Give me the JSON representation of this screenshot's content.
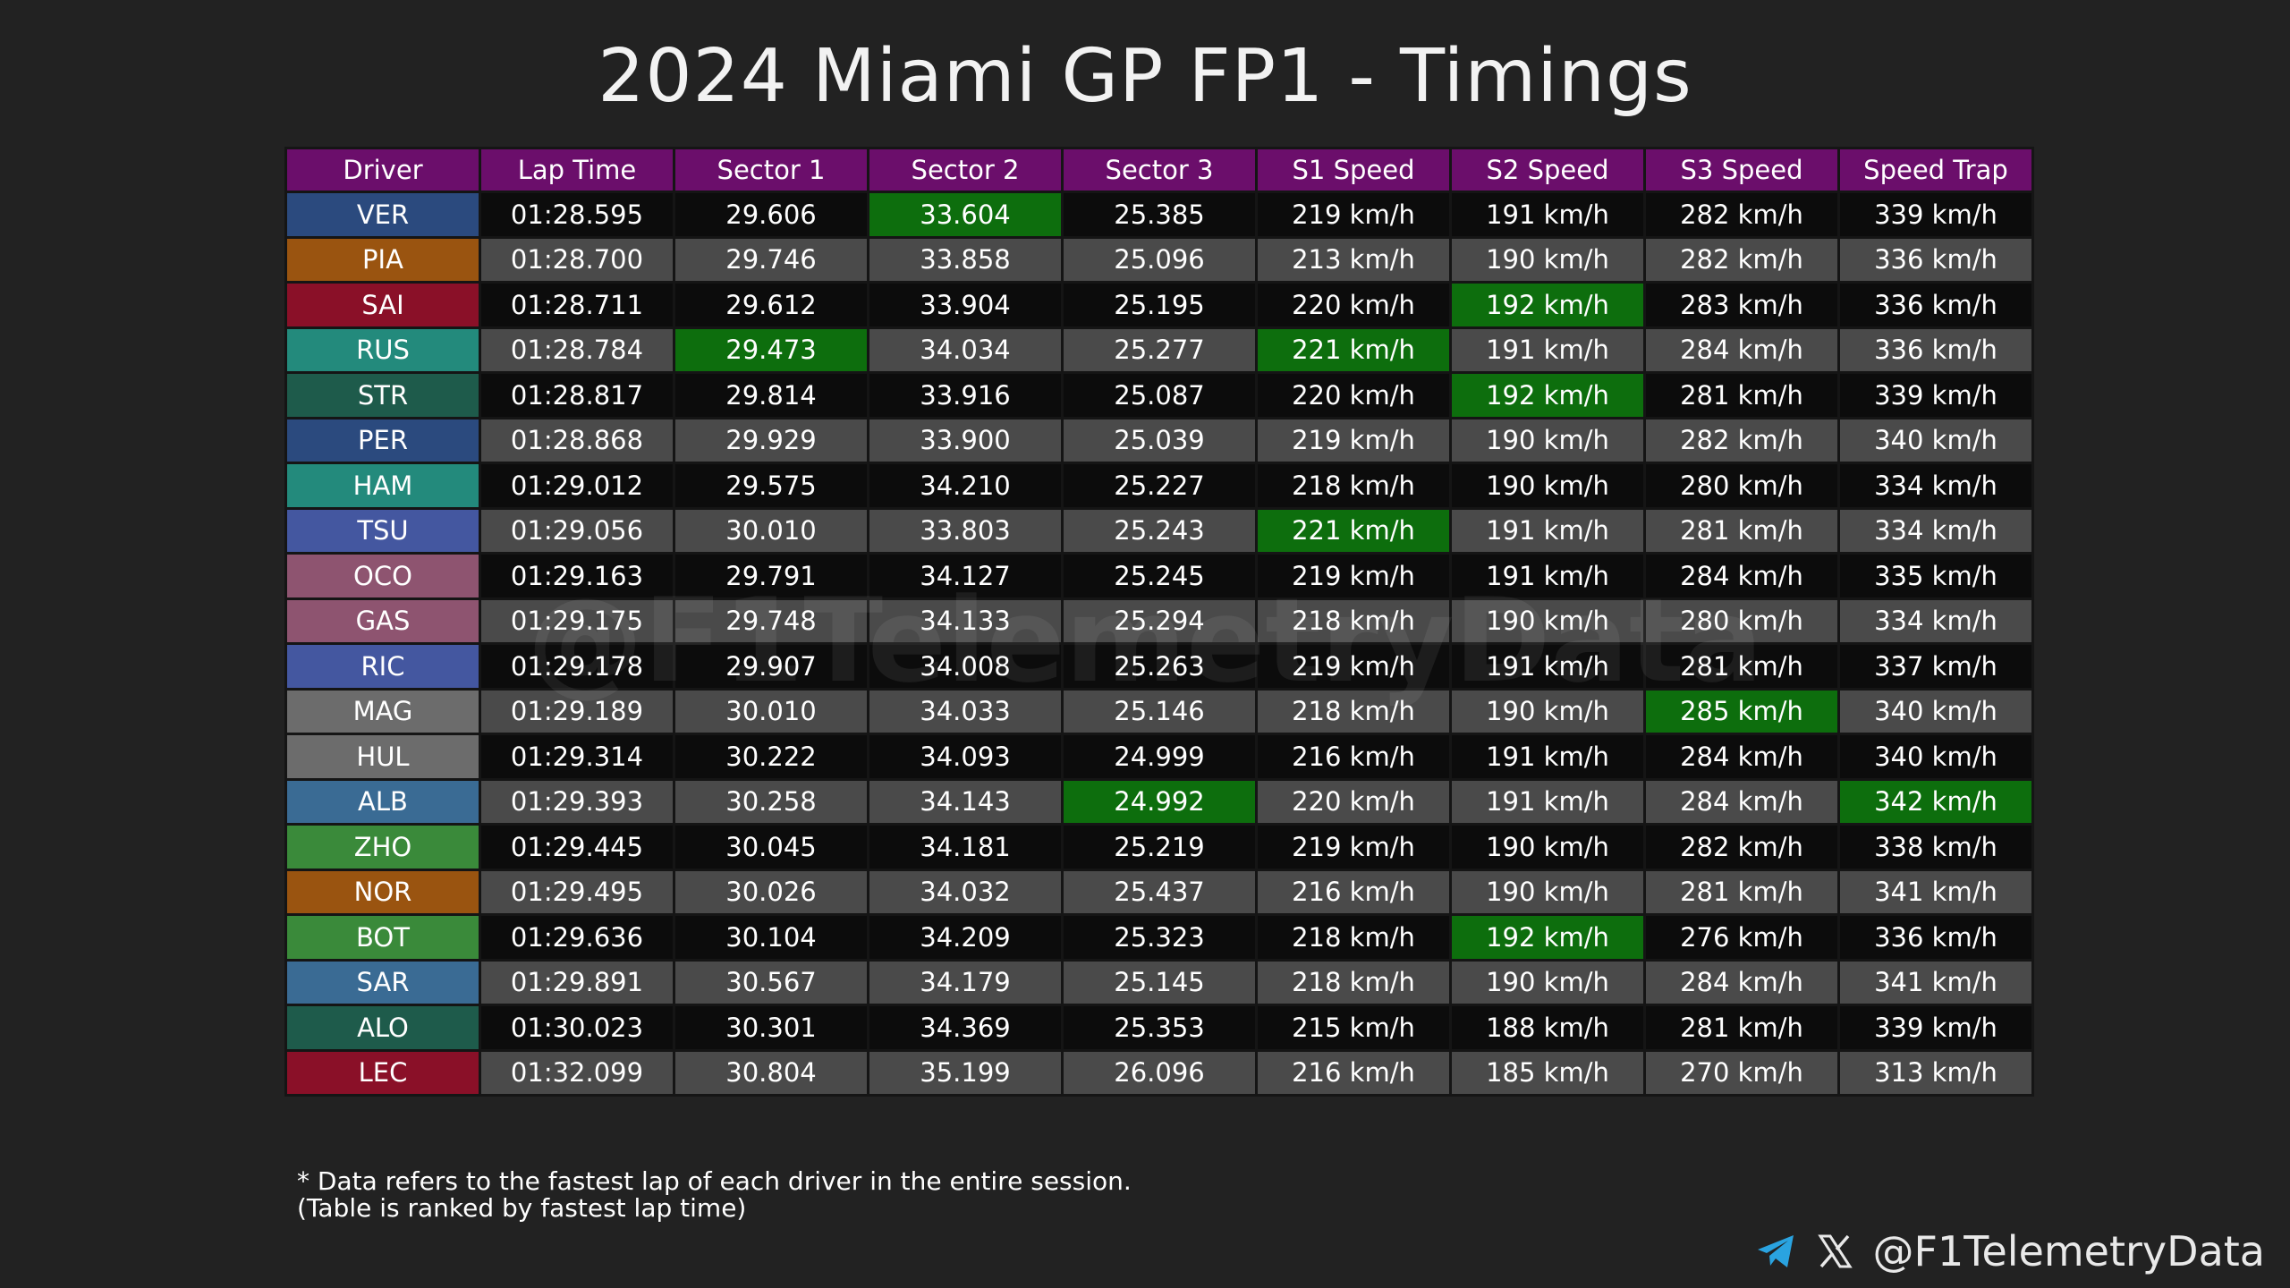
{
  "title": "2024 Miami GP FP1 - Timings",
  "watermark": "@F1TelemetryData",
  "headers": [
    "Driver",
    "Lap Time",
    "Sector 1",
    "Sector 2",
    "Sector 3",
    "S1 Speed",
    "S2 Speed",
    "S3 Speed",
    "Speed Trap"
  ],
  "rows": [
    {
      "driver": "VER",
      "team_color": "#2b4a7e",
      "cells": [
        "01:28.595",
        "29.606",
        "33.604",
        "25.385",
        "219 km/h",
        "191 km/h",
        "282 km/h",
        "339 km/h"
      ],
      "best": [
        2
      ]
    },
    {
      "driver": "PIA",
      "team_color": "#9a5410",
      "cells": [
        "01:28.700",
        "29.746",
        "33.858",
        "25.096",
        "213 km/h",
        "190 km/h",
        "282 km/h",
        "336 km/h"
      ],
      "best": []
    },
    {
      "driver": "SAI",
      "team_color": "#8a1028",
      "cells": [
        "01:28.711",
        "29.612",
        "33.904",
        "25.195",
        "220 km/h",
        "192 km/h",
        "283 km/h",
        "336 km/h"
      ],
      "best": [
        5
      ]
    },
    {
      "driver": "RUS",
      "team_color": "#238a7c",
      "cells": [
        "01:28.784",
        "29.473",
        "34.034",
        "25.277",
        "221 km/h",
        "191 km/h",
        "284 km/h",
        "336 km/h"
      ],
      "best": [
        1,
        4
      ]
    },
    {
      "driver": "STR",
      "team_color": "#1e5b4b",
      "cells": [
        "01:28.817",
        "29.814",
        "33.916",
        "25.087",
        "220 km/h",
        "192 km/h",
        "281 km/h",
        "339 km/h"
      ],
      "best": [
        5
      ]
    },
    {
      "driver": "PER",
      "team_color": "#2b4a7e",
      "cells": [
        "01:28.868",
        "29.929",
        "33.900",
        "25.039",
        "219 km/h",
        "190 km/h",
        "282 km/h",
        "340 km/h"
      ],
      "best": []
    },
    {
      "driver": "HAM",
      "team_color": "#238a7c",
      "cells": [
        "01:29.012",
        "29.575",
        "34.210",
        "25.227",
        "218 km/h",
        "190 km/h",
        "280 km/h",
        "334 km/h"
      ],
      "best": []
    },
    {
      "driver": "TSU",
      "team_color": "#4457a0",
      "cells": [
        "01:29.056",
        "30.010",
        "33.803",
        "25.243",
        "221 km/h",
        "191 km/h",
        "281 km/h",
        "334 km/h"
      ],
      "best": [
        4
      ]
    },
    {
      "driver": "OCO",
      "team_color": "#8e5470",
      "cells": [
        "01:29.163",
        "29.791",
        "34.127",
        "25.245",
        "219 km/h",
        "191 km/h",
        "284 km/h",
        "335 km/h"
      ],
      "best": []
    },
    {
      "driver": "GAS",
      "team_color": "#8e5470",
      "cells": [
        "01:29.175",
        "29.748",
        "34.133",
        "25.294",
        "218 km/h",
        "190 km/h",
        "280 km/h",
        "334 km/h"
      ],
      "best": []
    },
    {
      "driver": "RIC",
      "team_color": "#4457a0",
      "cells": [
        "01:29.178",
        "29.907",
        "34.008",
        "25.263",
        "219 km/h",
        "191 km/h",
        "281 km/h",
        "337 km/h"
      ],
      "best": []
    },
    {
      "driver": "MAG",
      "team_color": "#6c6c6c",
      "cells": [
        "01:29.189",
        "30.010",
        "34.033",
        "25.146",
        "218 km/h",
        "190 km/h",
        "285 km/h",
        "340 km/h"
      ],
      "best": [
        6
      ]
    },
    {
      "driver": "HUL",
      "team_color": "#6c6c6c",
      "cells": [
        "01:29.314",
        "30.222",
        "34.093",
        "24.999",
        "216 km/h",
        "191 km/h",
        "284 km/h",
        "340 km/h"
      ],
      "best": []
    },
    {
      "driver": "ALB",
      "team_color": "#3a6b94",
      "cells": [
        "01:29.393",
        "30.258",
        "34.143",
        "24.992",
        "220 km/h",
        "191 km/h",
        "284 km/h",
        "342 km/h"
      ],
      "best": [
        3,
        7
      ]
    },
    {
      "driver": "ZHO",
      "team_color": "#3a8a3a",
      "cells": [
        "01:29.445",
        "30.045",
        "34.181",
        "25.219",
        "219 km/h",
        "190 km/h",
        "282 km/h",
        "338 km/h"
      ],
      "best": []
    },
    {
      "driver": "NOR",
      "team_color": "#9a5410",
      "cells": [
        "01:29.495",
        "30.026",
        "34.032",
        "25.437",
        "216 km/h",
        "190 km/h",
        "281 km/h",
        "341 km/h"
      ],
      "best": []
    },
    {
      "driver": "BOT",
      "team_color": "#3a8a3a",
      "cells": [
        "01:29.636",
        "30.104",
        "34.209",
        "25.323",
        "218 km/h",
        "192 km/h",
        "276 km/h",
        "336 km/h"
      ],
      "best": [
        5
      ]
    },
    {
      "driver": "SAR",
      "team_color": "#3a6b94",
      "cells": [
        "01:29.891",
        "30.567",
        "34.179",
        "25.145",
        "218 km/h",
        "190 km/h",
        "284 km/h",
        "341 km/h"
      ],
      "best": []
    },
    {
      "driver": "ALO",
      "team_color": "#1e5b4b",
      "cells": [
        "01:30.023",
        "30.301",
        "34.369",
        "25.353",
        "215 km/h",
        "188 km/h",
        "281 km/h",
        "339 km/h"
      ],
      "best": []
    },
    {
      "driver": "LEC",
      "team_color": "#8a1028",
      "cells": [
        "01:32.099",
        "30.804",
        "35.199",
        "26.096",
        "216 km/h",
        "185 km/h",
        "270 km/h",
        "313 km/h"
      ],
      "best": []
    }
  ],
  "colors": {
    "header": "#6b0e6b",
    "best": "#0d6e0d",
    "row_dark": "#0c0c0c",
    "row_light": "#4a4a4a",
    "background": "#222222"
  },
  "footnote": {
    "line1": "* Data refers to the fastest lap of each driver in the entire session.",
    "line2": "(Table is ranked by fastest lap time)"
  },
  "social": {
    "icons": [
      "telegram-icon",
      "x-icon"
    ],
    "handle": "@F1TelemetryData"
  }
}
